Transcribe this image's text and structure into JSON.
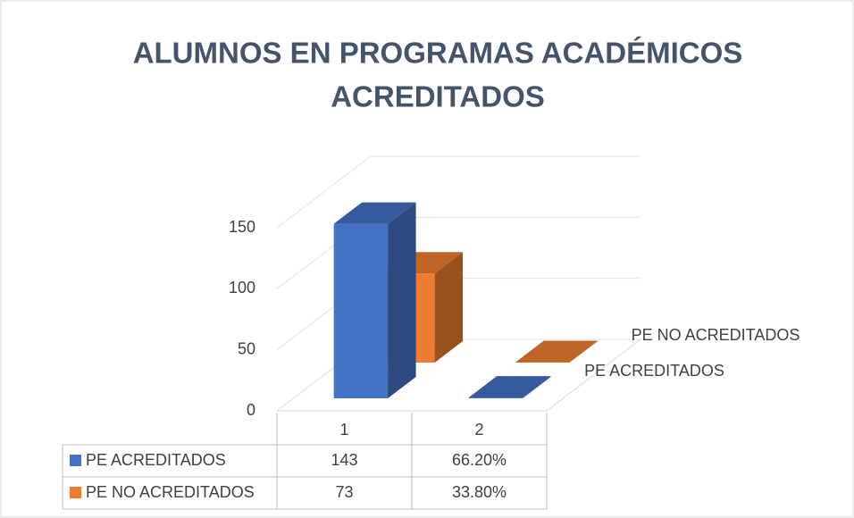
{
  "chart_data": {
    "type": "bar3d",
    "title": [
      "ALUMNOS EN PROGRAMAS ACADÉMICOS",
      "ACREDITADOS"
    ],
    "categories": [
      "1",
      "2"
    ],
    "series": [
      {
        "name": "PE ACREDITADOS",
        "color": "#4472c4",
        "values": [
          143,
          0.662
        ],
        "value_labels": [
          "143",
          "66.20%"
        ]
      },
      {
        "name": "PE NO ACREDITADOS",
        "color": "#ed7d31",
        "values": [
          73,
          0.338
        ],
        "value_labels": [
          "73",
          "33.80%"
        ]
      }
    ],
    "ylim": [
      0,
      150
    ],
    "yticks": [
      0,
      50,
      100,
      150
    ],
    "grid": true,
    "data_table": true
  }
}
